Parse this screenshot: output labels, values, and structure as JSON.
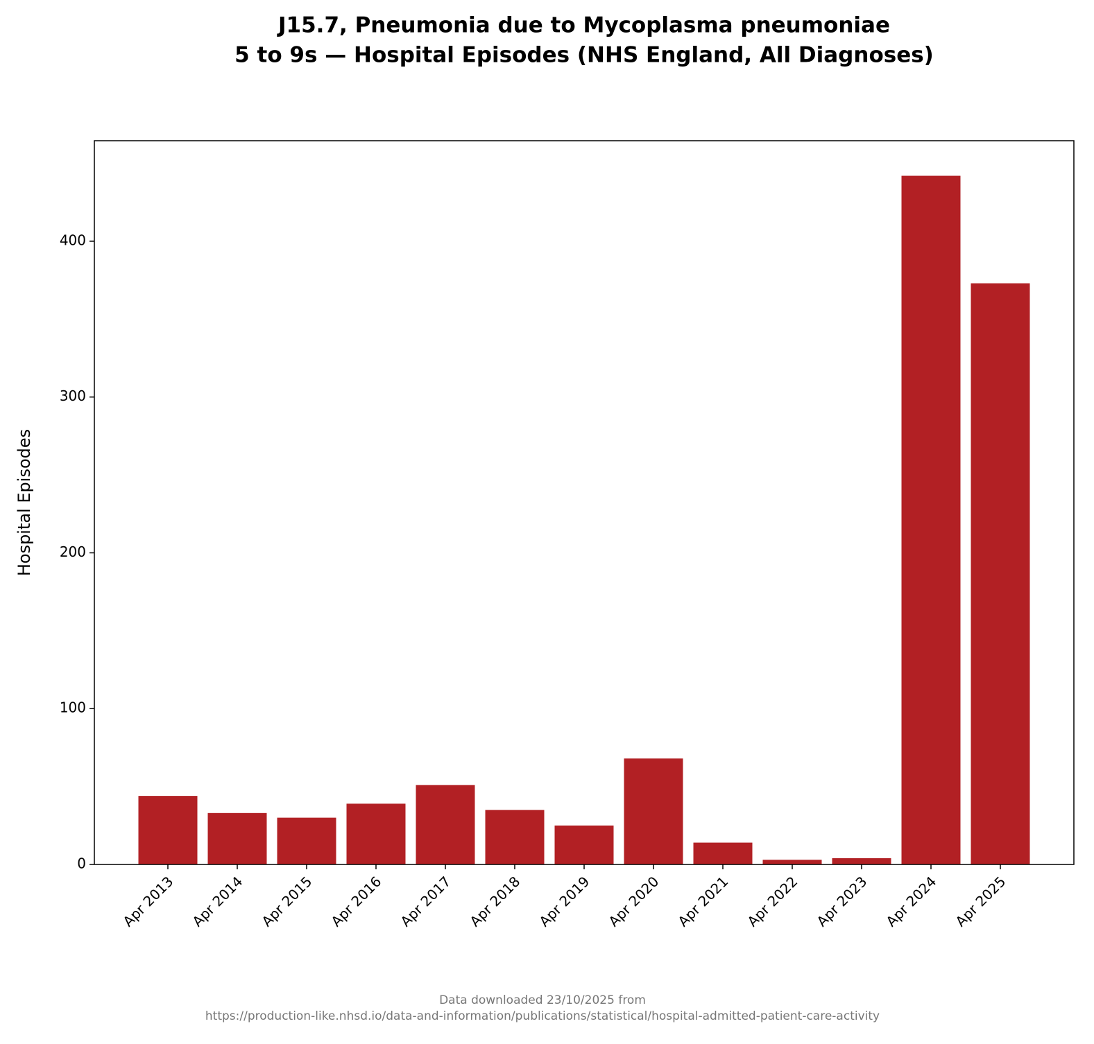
{
  "chart_data": {
    "type": "bar",
    "title": "J15.7,  Pneumonia due to Mycoplasma pneumoniae",
    "subtitle": "5 to 9s — Hospital Episodes (NHS England, All Diagnoses)",
    "y_label": "Hospital Episodes",
    "categories": [
      "Apr 2013",
      "Apr 2014",
      "Apr 2015",
      "Apr 2016",
      "Apr 2017",
      "Apr 2018",
      "Apr 2019",
      "Apr 2020",
      "Apr 2021",
      "Apr 2022",
      "Apr 2023",
      "Apr 2024",
      "Apr 2025"
    ],
    "values": [
      44,
      33,
      30,
      39,
      51,
      35,
      25,
      68,
      14,
      3,
      4,
      442,
      373
    ],
    "color": "#b22024",
    "ylim": [
      0,
      464.5
    ],
    "yticks": [
      0,
      100,
      200,
      300,
      400
    ],
    "grid": false,
    "footnote": [
      "Data downloaded 23/10/2025 from",
      "https://production-like.nhsd.io/data-and-information/publications/statistical/hospital-admitted-patient-care-activity"
    ]
  }
}
